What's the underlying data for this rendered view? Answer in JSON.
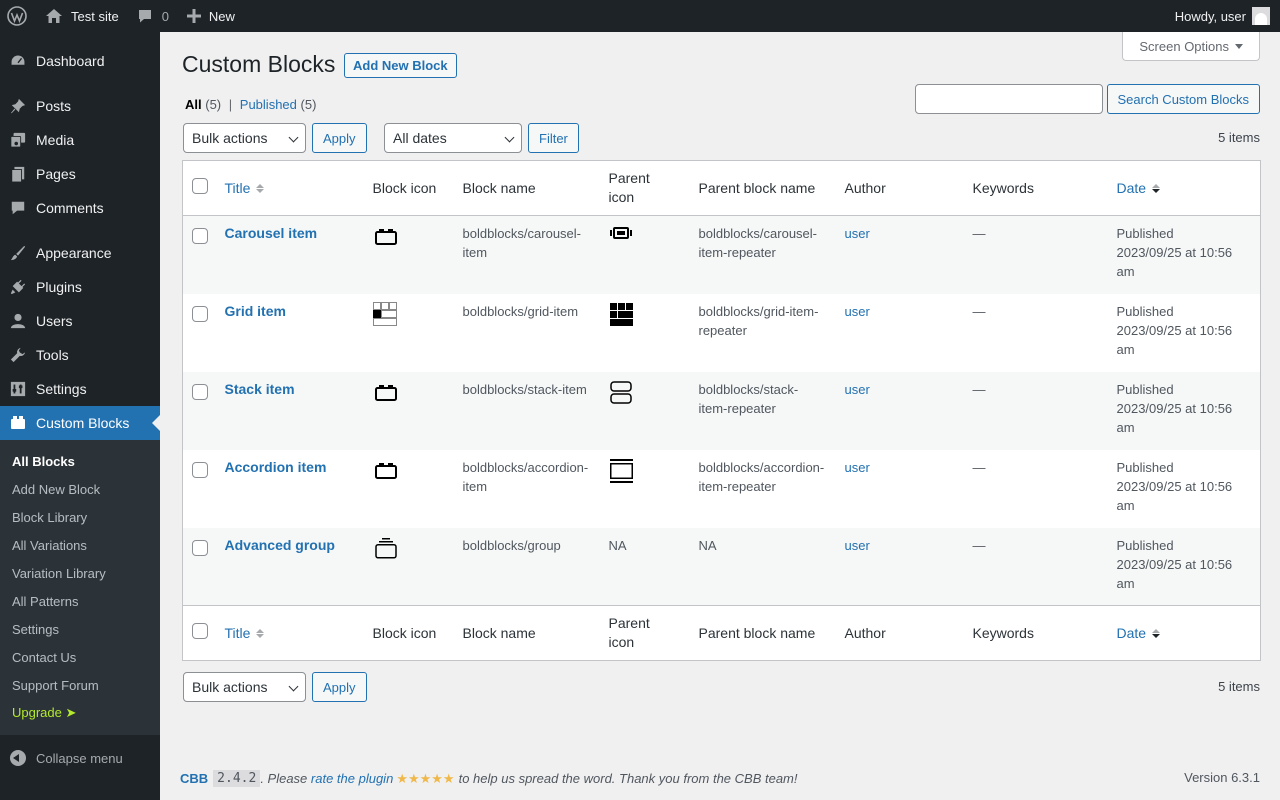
{
  "adminbar": {
    "site_name": "Test site",
    "comments_count": "0",
    "new_label": "New",
    "howdy": "Howdy, user"
  },
  "sidebar": {
    "items": [
      {
        "label": "Dashboard",
        "icon": "dashboard-icon"
      },
      {
        "label": "Posts",
        "icon": "pushpin-icon"
      },
      {
        "label": "Media",
        "icon": "media-icon"
      },
      {
        "label": "Pages",
        "icon": "pages-icon"
      },
      {
        "label": "Comments",
        "icon": "comment-icon"
      },
      {
        "label": "Appearance",
        "icon": "paintbrush-icon"
      },
      {
        "label": "Plugins",
        "icon": "plugin-icon"
      },
      {
        "label": "Users",
        "icon": "user-icon"
      },
      {
        "label": "Tools",
        "icon": "wrench-icon"
      },
      {
        "label": "Settings",
        "icon": "settings-icon"
      },
      {
        "label": "Custom Blocks",
        "icon": "block-icon"
      }
    ],
    "submenu": [
      "All Blocks",
      "Add New Block",
      "Block Library",
      "All Variations",
      "Variation Library",
      "All Patterns",
      "Settings",
      "Contact Us",
      "Support Forum"
    ],
    "upgrade": "Upgrade ➤",
    "collapse": "Collapse menu"
  },
  "header": {
    "screen_options": "Screen Options",
    "title": "Custom Blocks",
    "add_new": "Add New Block"
  },
  "views": {
    "all": "All",
    "all_count": "(5)",
    "sep": "|",
    "published": "Published",
    "published_count": "(5)"
  },
  "search": {
    "value": "",
    "button": "Search Custom Blocks"
  },
  "tablenav": {
    "bulk": "Bulk actions",
    "apply": "Apply",
    "dates": "All dates",
    "filter": "Filter",
    "items": "5 items"
  },
  "columns": {
    "title": "Title",
    "block_icon": "Block icon",
    "block_name": "Block name",
    "parent_icon": "Parent icon",
    "parent_block_name": "Parent block name",
    "author": "Author",
    "keywords": "Keywords",
    "date": "Date"
  },
  "rows": [
    {
      "title": "Carousel item",
      "block_icon": "block-icon",
      "block_name": "boldblocks/carousel-item",
      "parent_icon": "carousel-icon",
      "parent_block_name": "boldblocks/carousel-item-repeater",
      "author": "user",
      "keywords": "—",
      "status": "Published",
      "date": "2023/09/25 at 10:56 am"
    },
    {
      "title": "Grid item",
      "block_icon": "grid-item-icon",
      "block_name": "boldblocks/grid-item",
      "parent_icon": "grid-icon",
      "parent_block_name": "boldblocks/grid-item-repeater",
      "author": "user",
      "keywords": "—",
      "status": "Published",
      "date": "2023/09/25 at 10:56 am"
    },
    {
      "title": "Stack item",
      "block_icon": "block-icon",
      "block_name": "boldblocks/stack-item",
      "parent_icon": "stack-icon",
      "parent_block_name": "boldblocks/stack-item-repeater",
      "author": "user",
      "keywords": "—",
      "status": "Published",
      "date": "2023/09/25 at 10:56 am"
    },
    {
      "title": "Accordion item",
      "block_icon": "block-icon",
      "block_name": "boldblocks/accordion-item",
      "parent_icon": "accordion-icon",
      "parent_block_name": "boldblocks/accordion-item-repeater",
      "author": "user",
      "keywords": "—",
      "status": "Published",
      "date": "2023/09/25 at 10:56 am"
    },
    {
      "title": "Advanced group",
      "block_icon": "group-icon",
      "block_name": "boldblocks/group",
      "parent_icon": "",
      "parent_icon_text": "NA",
      "parent_block_name": "NA",
      "author": "user",
      "keywords": "—",
      "status": "Published",
      "date": "2023/09/25 at 10:56 am"
    }
  ],
  "footer": {
    "cbb": "CBB",
    "version_badge": "2.4.2",
    "text1": ". Please ",
    "rate_link": "rate the plugin",
    "stars": "★★★★★",
    "text2": "to help us spread the word. Thank you from the CBB team!",
    "wp_version": "Version 6.3.1"
  },
  "colors": {
    "accent": "#2271b1",
    "admin_dark": "#1d2327",
    "upgrade": "#b3ea2b",
    "stars": "#f0b849"
  }
}
